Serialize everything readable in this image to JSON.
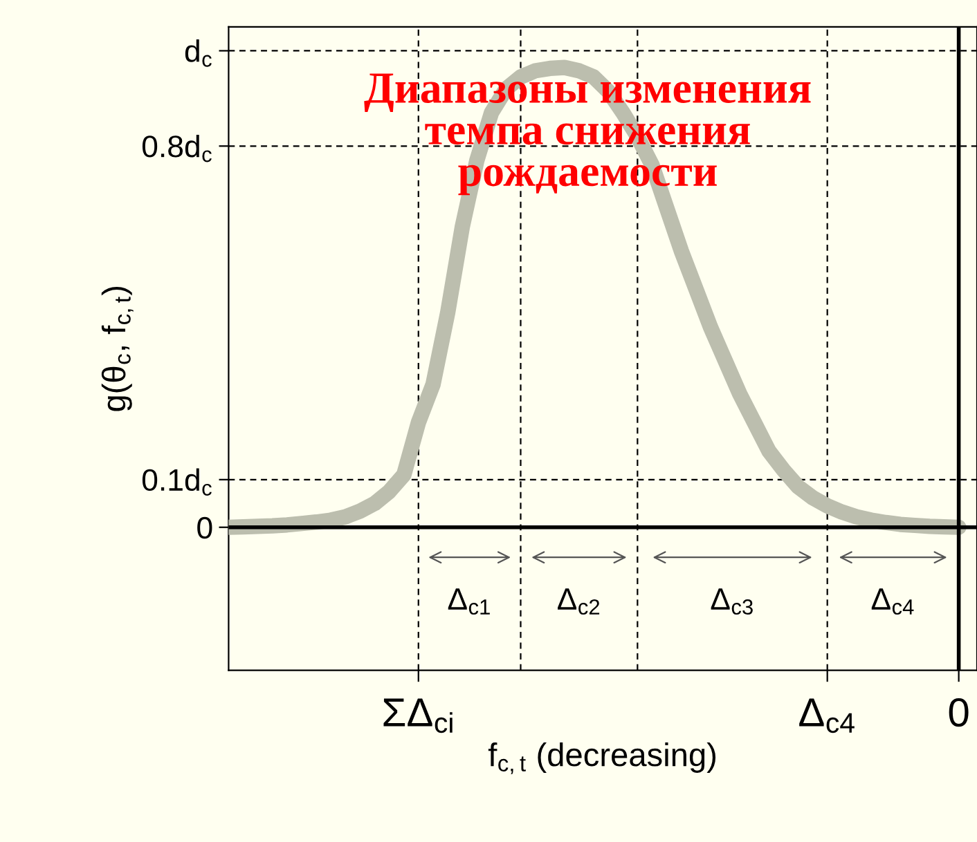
{
  "chart_data": {
    "type": "line",
    "title": "Диапазоны изменения\nтемпа снижения\nрождаемости",
    "xlabel": "f$_{c,t}$ (decreasing)",
    "ylabel": "g(θ$_{c}$, f$_{c,t}$)",
    "categories": [
      null,
      null,
      null,
      null,
      null,
      null,
      null,
      null,
      null,
      null,
      null,
      null,
      null,
      "ΣΔ$_{ci}$",
      null,
      null,
      null,
      null,
      null,
      null,
      null,
      null,
      null,
      null,
      null,
      null,
      null,
      null,
      null,
      null,
      null,
      null,
      null,
      null,
      null,
      null,
      null,
      null,
      null,
      null,
      null,
      "Δ$_{c4}$",
      null,
      null,
      null,
      null,
      null,
      null,
      null,
      null,
      "0"
    ],
    "series": [
      {
        "color": "#bcbeae",
        "values": [
          0,
          0.001,
          0.002,
          0.003,
          0.005,
          0.008,
          0.011,
          0.015,
          0.022,
          0.034,
          0.05,
          0.075,
          0.11,
          0.22,
          0.3,
          0.45,
          0.63,
          0.77,
          0.87,
          0.92,
          0.945,
          0.958,
          0.963,
          0.965,
          0.958,
          0.945,
          0.915,
          0.87,
          0.82,
          0.76,
          0.67,
          0.58,
          0.5,
          0.42,
          0.35,
          0.28,
          0.22,
          0.16,
          0.12,
          0.085,
          0.062,
          0.045,
          0.032,
          0.022,
          0.015,
          0.01,
          0.006,
          0.004,
          0.002,
          0.001,
          0
        ]
      }
    ],
    "ylim": [
      -0.3,
      1.05
    ],
    "yticks": [
      0,
      {
        "value": 0.1,
        "label": "0.1d$_{c}$"
      },
      {
        "value": 0.8,
        "label": "0.8d$_{c}$"
      },
      {
        "value": 1,
        "label": "d$_{c}$"
      }
    ],
    "grid": true,
    "line_style": "solid",
    "marker": "none",
    "annotations": [
      "Δ$_{c1}$",
      "Δ$_{c2}$",
      "Δ$_{c3}$",
      "Δ$_{c4}$"
    ]
  }
}
